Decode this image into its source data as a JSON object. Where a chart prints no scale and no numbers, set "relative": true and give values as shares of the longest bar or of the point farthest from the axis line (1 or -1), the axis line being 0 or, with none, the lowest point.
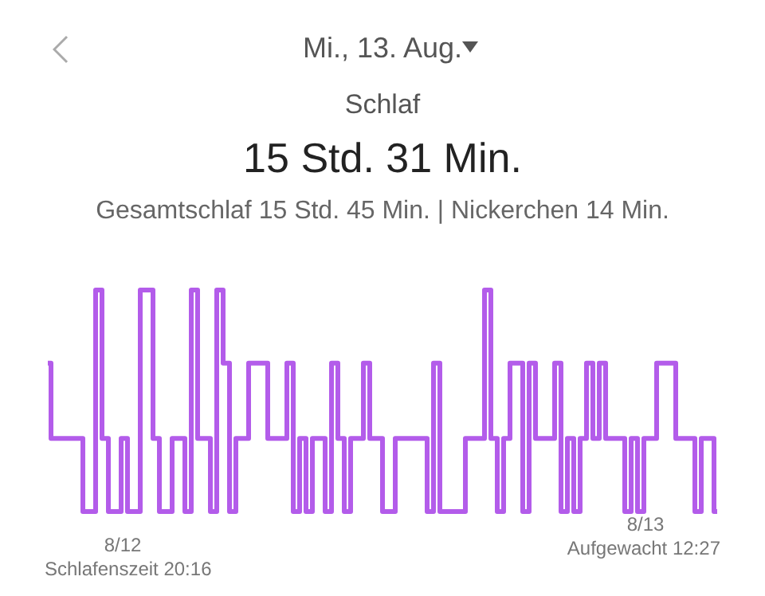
{
  "chart_data": {
    "type": "step",
    "relative": true,
    "marker": "none",
    "title": "Mi., 13. Aug.",
    "subtitle": "Schlaf",
    "annotations": [
      "15 Std. 31 Min.",
      "Gesamtschlaf 15 Std. 45 Min. | Nickerchen 14 Min.",
      "8/12",
      "Schlafenszeit 20:16",
      "8/13",
      "Aufgewacht 12:27"
    ],
    "categories": [
      null,
      null,
      null,
      null,
      null,
      null,
      null,
      null,
      null,
      null,
      null,
      null,
      null,
      null,
      null,
      null,
      null,
      null,
      null,
      null,
      null,
      null,
      null,
      null,
      null,
      null,
      null,
      null,
      null,
      null,
      null,
      null,
      null,
      null,
      null,
      null,
      null,
      null,
      null,
      null,
      null,
      null,
      null,
      null,
      null,
      null,
      null,
      null,
      null,
      null,
      null,
      null,
      null,
      null,
      null,
      null,
      null,
      null,
      null,
      null,
      null,
      null,
      null,
      null,
      null,
      null,
      null,
      null,
      null,
      null,
      null,
      null,
      null,
      null,
      null,
      null,
      null,
      null,
      null,
      null,
      null,
      null,
      null,
      null,
      null,
      null,
      null,
      null,
      null,
      null,
      null,
      null,
      null,
      null,
      null,
      null,
      null,
      null,
      null,
      null,
      null,
      null,
      null,
      null,
      null,
      null
    ],
    "color": "#b35cea",
    "values": [
      0.67,
      0.33,
      0.33,
      0.33,
      0.33,
      0.33,
      0,
      0,
      1,
      0.33,
      0,
      0,
      0.33,
      0,
      0,
      1,
      1,
      0.33,
      0,
      0,
      0.33,
      0.33,
      0,
      1,
      0.33,
      0.33,
      0,
      1,
      0.67,
      0,
      0.33,
      0.33,
      0.67,
      0.67,
      0.67,
      0.33,
      0.33,
      0.33,
      0.67,
      0,
      0.33,
      0,
      0.33,
      0.33,
      0,
      0.67,
      0.33,
      0,
      0.33,
      0.33,
      0.67,
      0.33,
      0.33,
      0,
      0,
      0.33,
      0.33,
      0.33,
      0.33,
      0.33,
      0,
      0.67,
      0,
      0,
      0,
      0,
      0.33,
      0.33,
      0.33,
      1,
      0.33,
      0,
      0.33,
      0.67,
      0.67,
      0,
      0.67,
      0.33,
      0.33,
      0.33,
      0.67,
      0,
      0.33,
      0,
      0.33,
      0.67,
      0.33,
      0.67,
      0.33,
      0.33,
      0.33,
      0,
      0.33,
      0,
      0.33,
      0.33,
      0.67,
      0.67,
      0.67,
      0.33,
      0.33,
      0.33,
      0,
      0.33,
      0.33,
      0
    ]
  }
}
